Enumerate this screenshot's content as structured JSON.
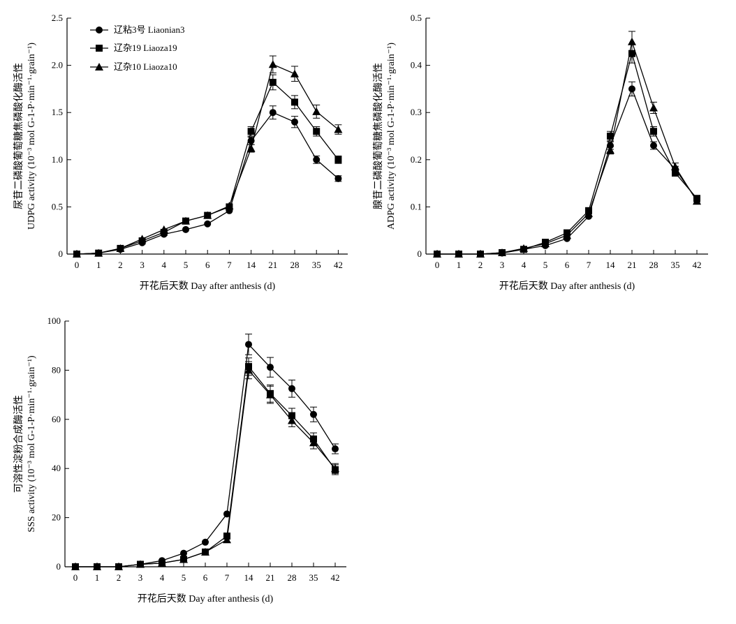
{
  "chart_data": [
    {
      "id": "udpg",
      "type": "line",
      "xlabel": "开花后天数 Day after anthesis (d)",
      "ylabel_cn": "尿苷二磷酸葡萄糖焦磷酸化酶活性",
      "ylabel_en": "UDPG activity (10⁻³ mol G-1-P·min⁻¹·grain⁻¹)",
      "categories": [
        "0",
        "1",
        "2",
        "3",
        "4",
        "5",
        "6",
        "7",
        "14",
        "21",
        "28",
        "35",
        "42"
      ],
      "ylim": [
        0,
        2.5
      ],
      "yticks": [
        "0",
        "0.5",
        "1.0",
        "1.5",
        "2.0",
        "2.5"
      ],
      "legend_position": "top-left",
      "series": [
        {
          "name": "辽粘3号 Liaonian3",
          "marker": "circle",
          "values": [
            0,
            0.01,
            0.05,
            0.12,
            0.21,
            0.26,
            0.32,
            0.46,
            1.2,
            1.5,
            1.4,
            1.0,
            0.8
          ],
          "errors": [
            0,
            0,
            0,
            0,
            0,
            0,
            0,
            0,
            0.04,
            0.07,
            0.06,
            0.04,
            0.03
          ]
        },
        {
          "name": "辽杂19 Liaoza19",
          "marker": "square",
          "values": [
            0,
            0.01,
            0.06,
            0.14,
            0.23,
            0.35,
            0.41,
            0.5,
            1.3,
            1.82,
            1.61,
            1.3,
            1.0
          ],
          "errors": [
            0,
            0,
            0,
            0,
            0,
            0,
            0,
            0,
            0.05,
            0.08,
            0.07,
            0.05,
            0.04
          ]
        },
        {
          "name": "辽杂10 Liaoza10",
          "marker": "triangle",
          "values": [
            0,
            0.01,
            0.06,
            0.16,
            0.26,
            0.35,
            0.41,
            0.51,
            1.12,
            2.01,
            1.91,
            1.51,
            1.32
          ],
          "errors": [
            0,
            0,
            0,
            0,
            0,
            0,
            0,
            0,
            0.04,
            0.09,
            0.08,
            0.07,
            0.05
          ]
        }
      ]
    },
    {
      "id": "adpg",
      "type": "line",
      "xlabel": "开花后天数 Day after anthesis (d)",
      "ylabel_cn": "腺苷二磷酸葡萄糖焦磷酸化酶活性",
      "ylabel_en": "ADPG activity (10⁻³ mol G-1-P·min⁻¹·grain⁻¹)",
      "categories": [
        "0",
        "1",
        "2",
        "3",
        "4",
        "5",
        "6",
        "7",
        "14",
        "21",
        "28",
        "35",
        "42"
      ],
      "ylim": [
        0,
        0.5
      ],
      "yticks": [
        "0",
        "0.1",
        "0.2",
        "0.3",
        "0.4",
        "0.5"
      ],
      "series": [
        {
          "name": "辽粘3号 Liaonian3",
          "marker": "circle",
          "values": [
            0,
            0,
            0,
            0.002,
            0.01,
            0.018,
            0.033,
            0.08,
            0.23,
            0.35,
            0.23,
            0.18,
            0.115
          ],
          "errors": [
            0,
            0,
            0,
            0,
            0,
            0,
            0,
            0,
            0.008,
            0.015,
            0.008,
            0.006,
            0.004
          ]
        },
        {
          "name": "辽杂19 Liaoza19",
          "marker": "square",
          "values": [
            0,
            0,
            0,
            0.003,
            0.01,
            0.025,
            0.045,
            0.092,
            0.25,
            0.425,
            0.26,
            0.172,
            0.118
          ],
          "errors": [
            0,
            0,
            0,
            0,
            0,
            0,
            0,
            0,
            0.01,
            0.02,
            0.01,
            0.007,
            0.004
          ]
        },
        {
          "name": "辽杂10 Liaoza10",
          "marker": "triangle",
          "values": [
            0,
            0,
            0,
            0.003,
            0.012,
            0.022,
            0.04,
            0.086,
            0.22,
            0.45,
            0.31,
            0.185,
            0.112
          ],
          "errors": [
            0,
            0,
            0,
            0,
            0,
            0,
            0,
            0,
            0.008,
            0.022,
            0.012,
            0.008,
            0.004
          ]
        }
      ]
    },
    {
      "id": "sss",
      "type": "line",
      "xlabel": "开花后天数 Day after anthesis (d)",
      "ylabel_cn": "可溶性淀粉合成酶活性",
      "ylabel_en": "SSS activity (10⁻³ mol G-1-P·min⁻¹·grain⁻¹)",
      "categories": [
        "0",
        "1",
        "2",
        "3",
        "4",
        "5",
        "6",
        "7",
        "14",
        "21",
        "28",
        "35",
        "42"
      ],
      "ylim": [
        0,
        100
      ],
      "yticks": [
        "0",
        "20",
        "40",
        "60",
        "80",
        "100"
      ],
      "series": [
        {
          "name": "辽粘3号 Liaonian3",
          "marker": "circle",
          "values": [
            0,
            0,
            0,
            1,
            2.5,
            5.5,
            10,
            21.5,
            90.5,
            81.2,
            72.5,
            62,
            48
          ],
          "errors": [
            0,
            0,
            0,
            0,
            0,
            0,
            0,
            0,
            4.2,
            4,
            3.5,
            3,
            2
          ]
        },
        {
          "name": "辽杂19 Liaoza19",
          "marker": "square",
          "values": [
            0,
            0,
            0,
            1,
            1.5,
            3,
            6,
            12.5,
            81.5,
            70.5,
            61.5,
            52,
            39.5
          ],
          "errors": [
            0,
            0,
            0,
            0,
            0,
            0,
            0,
            0,
            3.5,
            3.5,
            3,
            2.5,
            2
          ]
        },
        {
          "name": "辽杂10 Liaoza10",
          "marker": "triangle",
          "values": [
            0,
            0,
            0,
            1,
            1.5,
            3,
            6,
            11,
            80,
            70,
            59.5,
            50.5,
            40
          ],
          "errors": [
            0,
            0,
            0,
            0,
            0,
            0,
            0,
            0,
            3.5,
            3.5,
            2.5,
            2.5,
            2
          ]
        }
      ]
    }
  ]
}
